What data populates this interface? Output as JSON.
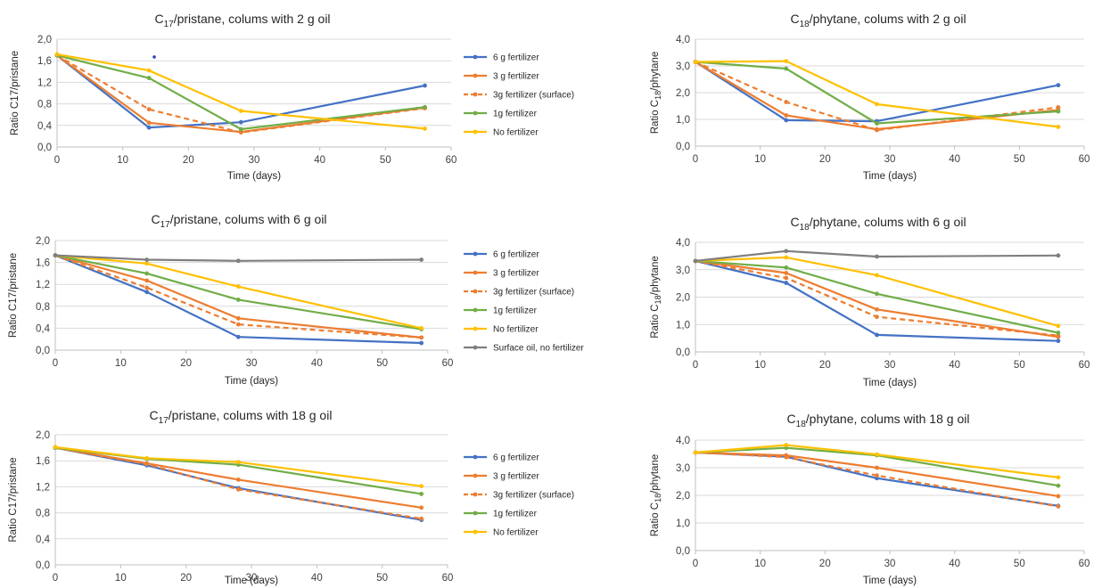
{
  "colors": {
    "6 g fertilizer": "#4472C4",
    "3 g fertilizer": "#ED7D31",
    "3g fertilizer (surface)": "#ED7D31",
    "1g fertilizer": "#70AD47",
    "No fertilizer": "#FFC000",
    "Surface oil, no fertilizer": "#7F7F7F"
  },
  "chart_data": [
    {
      "type": "line",
      "title_main": "C",
      "title_sub": "17",
      "title_rest": "/pristane, colums with 2 g oil",
      "xlabel": "Time (days)",
      "ylabel": "Ratio C17/pristane",
      "xlim": [
        0,
        60
      ],
      "ylim": [
        0,
        2.0
      ],
      "xticks": [
        "0",
        "10",
        "20",
        "30",
        "40",
        "50",
        "60"
      ],
      "yticks": [
        "0,0",
        "0,4",
        "0,8",
        "1,2",
        "1,6",
        "2,0"
      ],
      "grid": "horizontal",
      "legend": "right",
      "x": [
        0,
        14,
        28,
        56
      ],
      "series": [
        {
          "name": "6 g fertilizer",
          "values": [
            1.7,
            0.36,
            0.46,
            1.14
          ]
        },
        {
          "name": "3 g fertilizer",
          "values": [
            1.7,
            0.45,
            0.28,
            0.73
          ]
        },
        {
          "name": "3g fertilizer (surface)",
          "values": [
            1.7,
            0.7,
            0.27,
            0.72
          ],
          "dashed": true
        },
        {
          "name": "1g fertilizer",
          "values": [
            1.7,
            1.28,
            0.33,
            0.74
          ]
        },
        {
          "name": "No fertilizer",
          "values": [
            1.72,
            1.42,
            0.67,
            0.34
          ]
        }
      ],
      "annotations": [
        {
          "x": 14.8,
          "y": 1.67,
          "color": "#2F3FBF"
        }
      ]
    },
    {
      "type": "line",
      "title_main": "C",
      "title_sub": "18",
      "title_rest": "/phytane, colums with 2 g oil",
      "xlabel": "Time (days)",
      "ylabel": "Ratio C",
      "ylabel_sub": "18",
      "ylabel_rest": "/phytane",
      "xlim": [
        0,
        60
      ],
      "ylim": [
        0,
        4.0
      ],
      "xticks": [
        "0",
        "10",
        "20",
        "30",
        "40",
        "50",
        "60"
      ],
      "yticks": [
        "0,0",
        "1,0",
        "2,0",
        "3,0",
        "4,0"
      ],
      "grid": "horizontal",
      "x": [
        0,
        14,
        28,
        56
      ],
      "series": [
        {
          "name": "6 g fertilizer",
          "values": [
            3.15,
            0.97,
            0.93,
            2.28
          ]
        },
        {
          "name": "3 g fertilizer",
          "values": [
            3.15,
            1.15,
            0.63,
            1.35
          ]
        },
        {
          "name": "3g fertilizer (surface)",
          "values": [
            3.15,
            1.65,
            0.6,
            1.45
          ],
          "dashed": true
        },
        {
          "name": "1g fertilizer",
          "values": [
            3.15,
            2.9,
            0.85,
            1.3
          ]
        },
        {
          "name": "No fertilizer",
          "values": [
            3.15,
            3.18,
            1.57,
            0.72
          ]
        }
      ]
    },
    {
      "type": "line",
      "title_main": "C",
      "title_sub": "17",
      "title_rest": "/pristane, colums with 6 g oil",
      "xlabel": "Time (days)",
      "ylabel": "Ratio C17/pristane",
      "xlim": [
        0,
        60
      ],
      "ylim": [
        0,
        2.0
      ],
      "xticks": [
        "0",
        "10",
        "20",
        "30",
        "40",
        "50",
        "60"
      ],
      "yticks": [
        "0,0",
        "0,4",
        "0,8",
        "1,2",
        "1,6",
        "2,0"
      ],
      "grid": "horizontal",
      "legend": "right",
      "x": [
        0,
        14,
        28,
        56
      ],
      "series": [
        {
          "name": "6 g fertilizer",
          "values": [
            1.73,
            1.06,
            0.24,
            0.13
          ]
        },
        {
          "name": "3 g fertilizer",
          "values": [
            1.73,
            1.27,
            0.58,
            0.23
          ]
        },
        {
          "name": "3g fertilizer (surface)",
          "values": [
            1.73,
            1.14,
            0.47,
            0.23
          ],
          "dashed": true
        },
        {
          "name": "1g fertilizer",
          "values": [
            1.73,
            1.4,
            0.92,
            0.38
          ]
        },
        {
          "name": "No fertilizer",
          "values": [
            1.73,
            1.58,
            1.16,
            0.4
          ]
        },
        {
          "name": "Surface oil, no fertilizer",
          "values": [
            1.73,
            1.65,
            1.63,
            1.65
          ]
        }
      ]
    },
    {
      "type": "line",
      "title_main": "C",
      "title_sub": "18",
      "title_rest": "/phytane, colums with 6 g oil",
      "xlabel": "Time (days)",
      "ylabel": "Ratio C",
      "ylabel_sub": "18",
      "ylabel_rest": "/phytane",
      "xlim": [
        0,
        60
      ],
      "ylim": [
        0,
        4.0
      ],
      "xticks": [
        "0",
        "10",
        "20",
        "30",
        "40",
        "50",
        "60"
      ],
      "yticks": [
        "0,0",
        "1,0",
        "2,0",
        "3,0",
        "4,0"
      ],
      "grid": "horizontal",
      "x": [
        0,
        14,
        28,
        56
      ],
      "series": [
        {
          "name": "6 g fertilizer",
          "values": [
            3.32,
            2.52,
            0.62,
            0.4
          ]
        },
        {
          "name": "3 g fertilizer",
          "values": [
            3.32,
            2.88,
            1.55,
            0.55
          ]
        },
        {
          "name": "3g fertilizer (surface)",
          "values": [
            3.32,
            2.7,
            1.28,
            0.6
          ],
          "dashed": true
        },
        {
          "name": "1g fertilizer",
          "values": [
            3.32,
            3.08,
            2.12,
            0.7
          ]
        },
        {
          "name": "No fertilizer",
          "values": [
            3.32,
            3.45,
            2.8,
            0.95
          ]
        },
        {
          "name": "Surface oil, no fertilizer",
          "values": [
            3.32,
            3.68,
            3.48,
            3.52
          ]
        }
      ]
    },
    {
      "type": "line",
      "title_main": "C",
      "title_sub": "17",
      "title_rest": "/pristane, colums with 18 g oil",
      "xlabel": "Time (days)",
      "ylabel": "Ratio C17/pristane",
      "xlim": [
        0,
        60
      ],
      "ylim": [
        0,
        2.0
      ],
      "xticks": [
        "0",
        "10",
        "20",
        "30",
        "40",
        "50",
        "60"
      ],
      "yticks": [
        "0,0",
        "0,4",
        "0,8",
        "1,2",
        "1,6",
        "2,0"
      ],
      "grid": "horizontal",
      "legend": "right",
      "x": [
        0,
        14,
        28,
        56
      ],
      "series": [
        {
          "name": "6 g fertilizer",
          "values": [
            1.8,
            1.53,
            1.18,
            0.69
          ]
        },
        {
          "name": "3 g fertilizer",
          "values": [
            1.8,
            1.56,
            1.31,
            0.88
          ]
        },
        {
          "name": "3g fertilizer (surface)",
          "values": [
            1.8,
            1.55,
            1.16,
            0.71
          ],
          "dashed": true
        },
        {
          "name": "1g fertilizer",
          "values": [
            1.8,
            1.63,
            1.54,
            1.09
          ]
        },
        {
          "name": "No fertilizer",
          "values": [
            1.81,
            1.64,
            1.58,
            1.21
          ]
        }
      ]
    },
    {
      "type": "line",
      "title_main": "C",
      "title_sub": "18",
      "title_rest": "/phytane, colums with 18 g oil",
      "xlabel": "Time (days)",
      "ylabel": "Ratio C",
      "ylabel_sub": "18",
      "ylabel_rest": "/phytane",
      "xlim": [
        0,
        60
      ],
      "ylim": [
        0,
        4.0
      ],
      "xticks": [
        "0",
        "10",
        "20",
        "30",
        "40",
        "50",
        "60"
      ],
      "yticks": [
        "0,0",
        "1,0",
        "2,0",
        "3,0",
        "4,0"
      ],
      "grid": "horizontal",
      "x": [
        0,
        14,
        28,
        56
      ],
      "series": [
        {
          "name": "6 g fertilizer",
          "values": [
            3.55,
            3.4,
            2.62,
            1.62
          ]
        },
        {
          "name": "3 g fertilizer",
          "values": [
            3.55,
            3.45,
            3.0,
            1.97
          ]
        },
        {
          "name": "3g fertilizer (surface)",
          "values": [
            3.55,
            3.38,
            2.72,
            1.6
          ],
          "dashed": true
        },
        {
          "name": "1g fertilizer",
          "values": [
            3.55,
            3.72,
            3.45,
            2.35
          ]
        },
        {
          "name": "No fertilizer",
          "values": [
            3.55,
            3.82,
            3.48,
            2.65
          ]
        }
      ]
    }
  ]
}
